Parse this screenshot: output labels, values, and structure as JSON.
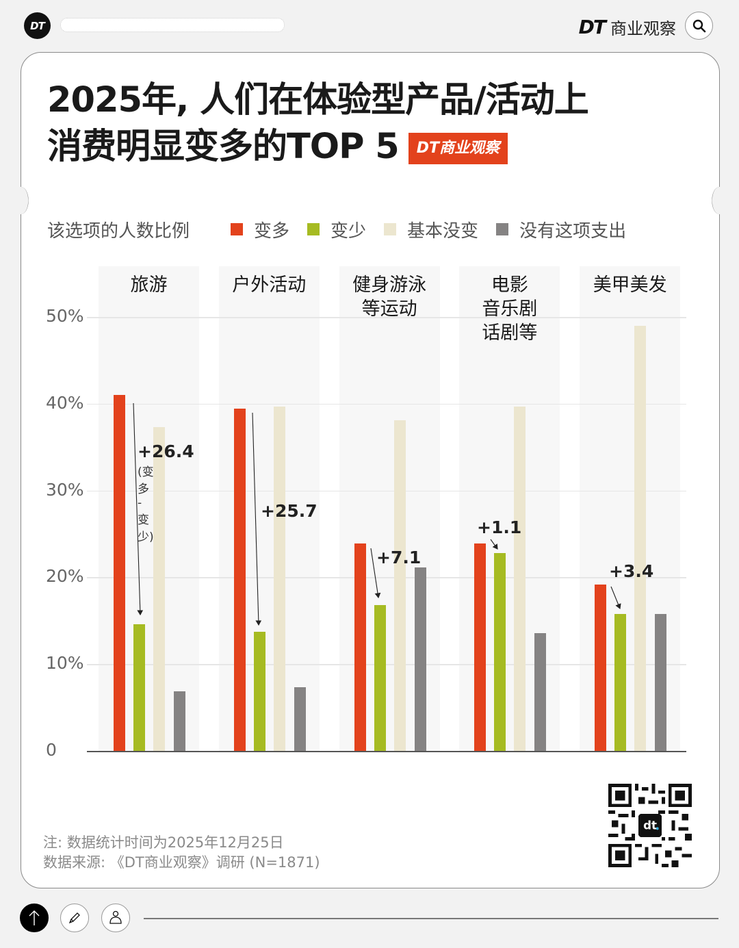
{
  "topbar": {
    "logo_text": "DT",
    "brand_dt": "DT",
    "brand_name": "商业观察",
    "search_icon": "search-icon"
  },
  "title": {
    "line1": "2025年, 人们在体验型产品/活动上",
    "line2": "消费明显变多的TOP 5",
    "badge": "DT商业观察"
  },
  "legend": {
    "title": "该选项的人数比例",
    "items": [
      {
        "label": "变多",
        "color": "#e3421c"
      },
      {
        "label": "变少",
        "color": "#a6bb22"
      },
      {
        "label": "基本没变",
        "color": "#ece6cf"
      },
      {
        "label": "没有这项支出",
        "color": "#858383"
      }
    ]
  },
  "y_ticks": [
    "0",
    "10%",
    "20%",
    "30%",
    "40%",
    "50%"
  ],
  "categories": [
    {
      "label_lines": [
        "旅游"
      ]
    },
    {
      "label_lines": [
        "户外活动"
      ]
    },
    {
      "label_lines": [
        "健身游泳",
        "等运动"
      ]
    },
    {
      "label_lines": [
        "电影",
        "音乐剧",
        "话剧等"
      ]
    },
    {
      "label_lines": [
        "美甲美发"
      ]
    }
  ],
  "annotations": [
    {
      "text": "+26.4",
      "sub": "(变多 - 变少)"
    },
    {
      "text": "+25.7"
    },
    {
      "text": "+7.1"
    },
    {
      "text": "+1.1"
    },
    {
      "text": "+3.4"
    }
  ],
  "footer": {
    "note": "注: 数据统计时间为2025年12月25日",
    "source": "数据来源: 《DT商业观察》调研 (N=1871)",
    "qr_icon": "qr-code-icon"
  },
  "bottombar": {
    "buttons": [
      "back-to-top",
      "edit",
      "profile"
    ]
  },
  "chart_data": {
    "type": "bar",
    "title": "2025年, 人们在体验型产品/活动上消费明显变多的TOP 5",
    "subtitle": "该选项的人数比例",
    "xlabel": "",
    "ylabel": "",
    "ylim": [
      0,
      50
    ],
    "yticks": [
      0,
      10,
      20,
      30,
      40,
      50
    ],
    "grid": true,
    "legend_position": "top",
    "categories": [
      "旅游",
      "户外活动",
      "健身游泳等运动",
      "电影音乐剧话剧等",
      "美甲美发"
    ],
    "series": [
      {
        "name": "变多",
        "color": "#e3421c",
        "values": [
          41.0,
          39.4,
          23.9,
          23.9,
          19.2
        ]
      },
      {
        "name": "变少",
        "color": "#a6bb22",
        "values": [
          14.6,
          13.7,
          16.8,
          22.8,
          15.8
        ]
      },
      {
        "name": "基本没变",
        "color": "#ece6cf",
        "values": [
          37.3,
          39.7,
          38.1,
          39.7,
          49.0
        ]
      },
      {
        "name": "没有这项支出",
        "color": "#858383",
        "values": [
          6.9,
          7.3,
          21.1,
          13.6,
          15.8
        ]
      }
    ],
    "annotations": [
      {
        "category": "旅游",
        "text": "+26.4 (变多 - 变少)"
      },
      {
        "category": "户外活动",
        "text": "+25.7"
      },
      {
        "category": "健身游泳等运动",
        "text": "+7.1"
      },
      {
        "category": "电影音乐剧话剧等",
        "text": "+1.1"
      },
      {
        "category": "美甲美发",
        "text": "+3.4"
      }
    ],
    "note": "注: 数据统计时间为2025年12月25日",
    "source": "数据来源: 《DT商业观察》调研 (N=1871)"
  }
}
